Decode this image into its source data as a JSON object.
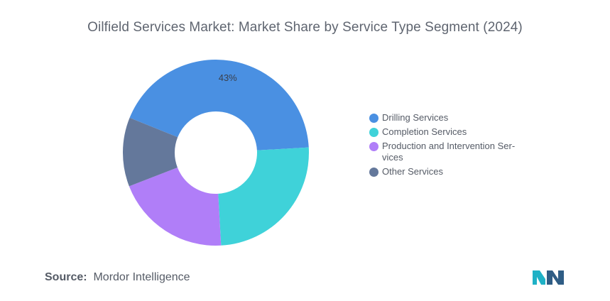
{
  "chart_data": {
    "type": "pie",
    "title": "Oilfield Services Market: Market Share by Service Type Segment (2024)",
    "categories": [
      "Drilling Services",
      "Completion Services",
      "Production and Intervention Ser-vices",
      "Other Services"
    ],
    "legend": [
      {
        "line1": "Drilling Services",
        "line2": ""
      },
      {
        "line1": "Completion Services",
        "line2": ""
      },
      {
        "line1": "Production and Intervention Ser-",
        "line2": "vices"
      },
      {
        "line1": "Other Services",
        "line2": ""
      }
    ],
    "values": [
      43,
      25,
      20,
      12
    ],
    "data_labels": [
      "43%",
      "",
      "",
      ""
    ],
    "colors": [
      "#4a90e2",
      "#3fd2d9",
      "#b07ef8",
      "#64789b"
    ],
    "legend_position": "right",
    "donut": true
  },
  "source": {
    "label": "Source:",
    "text": "Mordor Intelligence"
  },
  "logo": {
    "colors": [
      "#1fb1c6",
      "#2f5d85"
    ]
  }
}
